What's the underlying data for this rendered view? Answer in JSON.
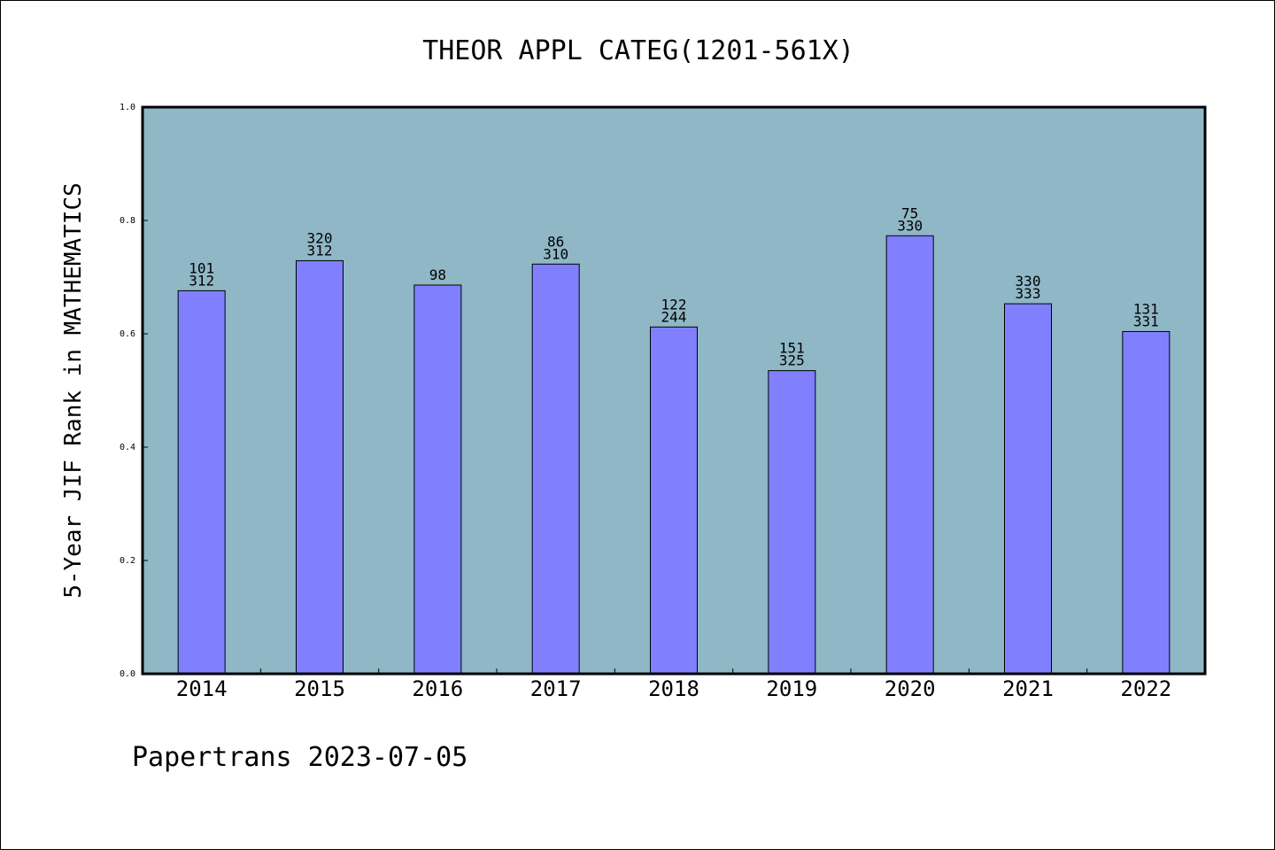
{
  "chart_data": {
    "type": "bar",
    "title": "THEOR APPL CATEG(1201-561X)",
    "xlabel": "",
    "ylabel": "5-Year JIF Rank in MATHEMATICS",
    "ylim": [
      0.0,
      1.0
    ],
    "yticks": [
      "0.0",
      "0.2",
      "0.4",
      "0.6",
      "0.8",
      "1.0"
    ],
    "categories": [
      "2014",
      "2015",
      "2016",
      "2017",
      "2018",
      "2019",
      "2020",
      "2021",
      "2022"
    ],
    "values": [
      0.676,
      0.729,
      0.686,
      0.723,
      0.612,
      0.535,
      0.773,
      0.653,
      0.604
    ],
    "bar_labels": [
      [
        "101",
        "312"
      ],
      [
        "320",
        "312"
      ],
      [
        "98"
      ],
      [
        "86",
        "310"
      ],
      [
        "122",
        "244"
      ],
      [
        "151",
        "325"
      ],
      [
        "75",
        "330"
      ],
      [
        "330",
        "333"
      ],
      [
        "131",
        "331"
      ]
    ],
    "grid": false,
    "colors": {
      "plot_background": "#8fb7c6",
      "bar_fill": "#8080ff",
      "bar_stroke": "#000000",
      "figure_background": "#ffffff"
    }
  },
  "footer": {
    "text": "Papertrans 2023-07-05"
  }
}
